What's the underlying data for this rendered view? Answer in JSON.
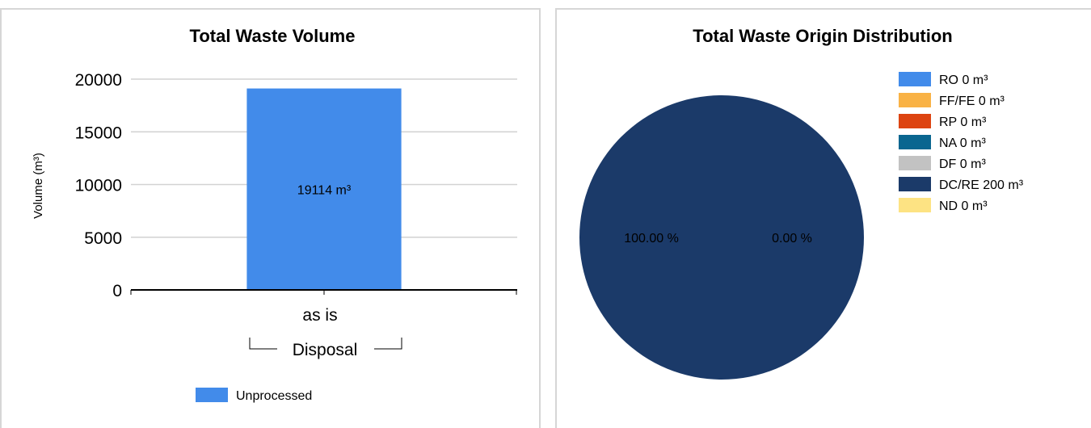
{
  "chart_data": [
    {
      "type": "bar",
      "title": "Total Waste Volume",
      "xlabel": "",
      "ylabel": "Volume (m³)",
      "categories": [
        "as is"
      ],
      "group_label": "Disposal",
      "ylim": [
        0,
        20000
      ],
      "yticks": [
        "0",
        "5000",
        "10000",
        "15000",
        "20000"
      ],
      "grid": true,
      "legend_position": "bottom",
      "series": [
        {
          "name": "Unprocessed",
          "color": "#428bea",
          "values": [
            19114
          ],
          "labels": [
            "19114 m³"
          ]
        }
      ]
    },
    {
      "type": "pie",
      "title": "Total Waste Origin Distribution",
      "legend_position": "right",
      "slices": [
        {
          "label": "RO 0 m³",
          "value": 0,
          "color": "#428bea"
        },
        {
          "label": "FF/FE 0 m³",
          "value": 0,
          "color": "#f9b245"
        },
        {
          "label": "RP 0 m³",
          "value": 0,
          "color": "#dd4411"
        },
        {
          "label": "NA 0 m³",
          "value": 0,
          "color": "#0a6690"
        },
        {
          "label": "DF 0 m³",
          "value": 0,
          "color": "#c2c2c2"
        },
        {
          "label": "DC/RE 200 m³",
          "value": 200,
          "color": "#1b3a69"
        },
        {
          "label": "ND 0 m³",
          "value": 0,
          "color": "#fde383"
        }
      ],
      "data_labels": [
        "100.00 %",
        "0.00 %"
      ]
    }
  ]
}
